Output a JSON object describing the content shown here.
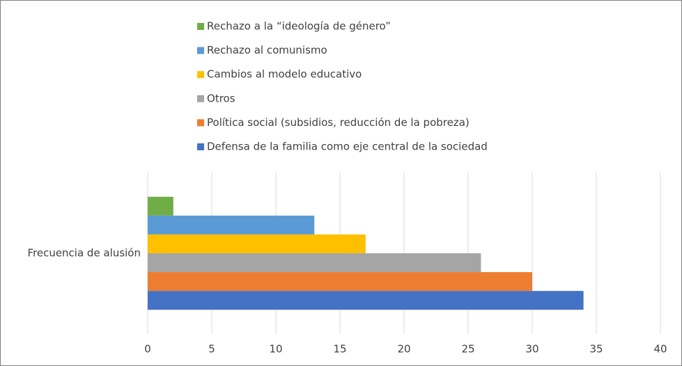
{
  "chart_data": {
    "type": "hbar",
    "categories": [
      "Frecuencia de alusión"
    ],
    "series": [
      {
        "name": "Rechazo a la “ideología de género”",
        "color": "#70ad47",
        "values": [
          2
        ]
      },
      {
        "name": "Rechazo al comunismo",
        "color": "#5b9bd5",
        "values": [
          13
        ]
      },
      {
        "name": "Cambios al modelo educativo",
        "color": "#ffc000",
        "values": [
          17
        ]
      },
      {
        "name": "Otros",
        "color": "#a5a5a5",
        "values": [
          26
        ]
      },
      {
        "name": "Política social (subsidios, reducción de la pobreza)",
        "color": "#ed7d31",
        "values": [
          30
        ]
      },
      {
        "name": "Defensa de la familia como eje central de la sociedad",
        "color": "#4472c4",
        "values": [
          34
        ]
      }
    ],
    "xlim": [
      0,
      40
    ],
    "xticks": [
      0,
      5,
      10,
      15,
      20,
      25,
      30,
      35,
      40
    ],
    "grid": true,
    "legend": "top"
  }
}
